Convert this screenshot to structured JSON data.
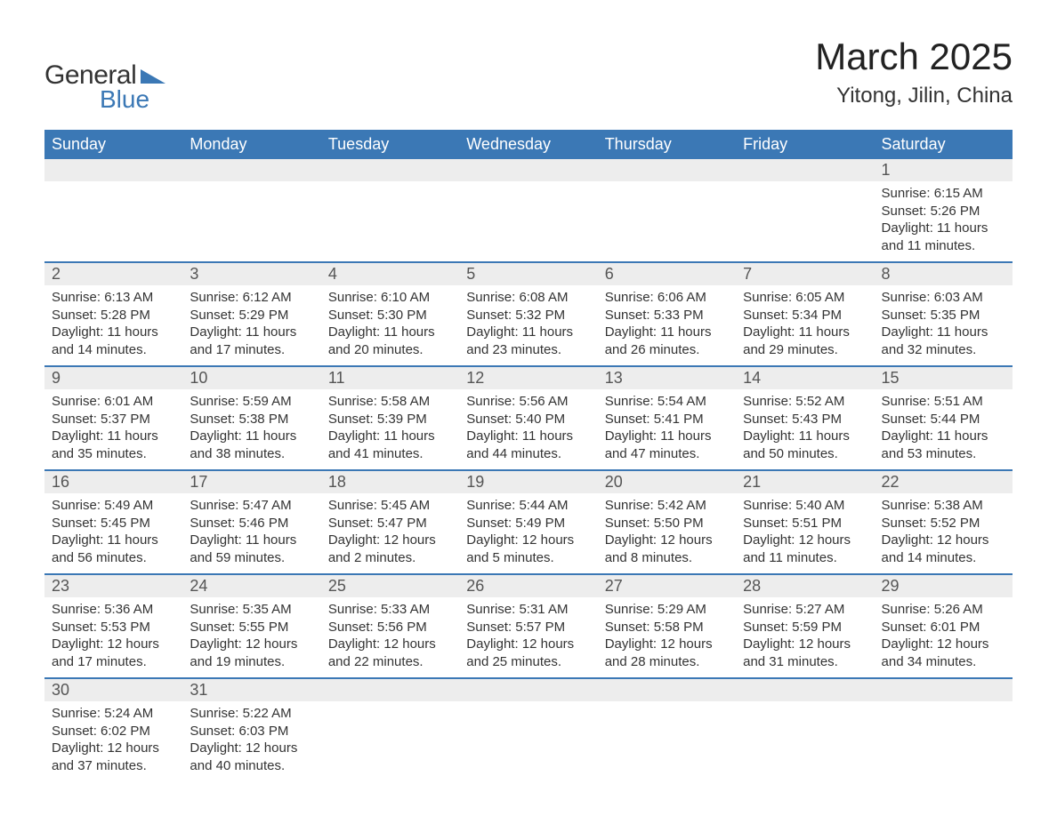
{
  "brand": {
    "word1": "General",
    "word2": "Blue",
    "accent_color": "#3b78b5"
  },
  "title": "March 2025",
  "location": "Yitong, Jilin, China",
  "colors": {
    "header_bg": "#3b78b5",
    "header_text": "#ffffff",
    "daynum_bg": "#ededed",
    "text": "#333333",
    "border": "#3b78b5"
  },
  "fonts": {
    "title_size": 42,
    "location_size": 24,
    "header_size": 18,
    "daynum_size": 18,
    "detail_size": 15
  },
  "weekdays": [
    "Sunday",
    "Monday",
    "Tuesday",
    "Wednesday",
    "Thursday",
    "Friday",
    "Saturday"
  ],
  "weeks": [
    {
      "nums": [
        "",
        "",
        "",
        "",
        "",
        "",
        "1"
      ],
      "cells": [
        null,
        null,
        null,
        null,
        null,
        null,
        {
          "sunrise": "Sunrise: 6:15 AM",
          "sunset": "Sunset: 5:26 PM",
          "day1": "Daylight: 11 hours",
          "day2": "and 11 minutes."
        }
      ]
    },
    {
      "nums": [
        "2",
        "3",
        "4",
        "5",
        "6",
        "7",
        "8"
      ],
      "cells": [
        {
          "sunrise": "Sunrise: 6:13 AM",
          "sunset": "Sunset: 5:28 PM",
          "day1": "Daylight: 11 hours",
          "day2": "and 14 minutes."
        },
        {
          "sunrise": "Sunrise: 6:12 AM",
          "sunset": "Sunset: 5:29 PM",
          "day1": "Daylight: 11 hours",
          "day2": "and 17 minutes."
        },
        {
          "sunrise": "Sunrise: 6:10 AM",
          "sunset": "Sunset: 5:30 PM",
          "day1": "Daylight: 11 hours",
          "day2": "and 20 minutes."
        },
        {
          "sunrise": "Sunrise: 6:08 AM",
          "sunset": "Sunset: 5:32 PM",
          "day1": "Daylight: 11 hours",
          "day2": "and 23 minutes."
        },
        {
          "sunrise": "Sunrise: 6:06 AM",
          "sunset": "Sunset: 5:33 PM",
          "day1": "Daylight: 11 hours",
          "day2": "and 26 minutes."
        },
        {
          "sunrise": "Sunrise: 6:05 AM",
          "sunset": "Sunset: 5:34 PM",
          "day1": "Daylight: 11 hours",
          "day2": "and 29 minutes."
        },
        {
          "sunrise": "Sunrise: 6:03 AM",
          "sunset": "Sunset: 5:35 PM",
          "day1": "Daylight: 11 hours",
          "day2": "and 32 minutes."
        }
      ]
    },
    {
      "nums": [
        "9",
        "10",
        "11",
        "12",
        "13",
        "14",
        "15"
      ],
      "cells": [
        {
          "sunrise": "Sunrise: 6:01 AM",
          "sunset": "Sunset: 5:37 PM",
          "day1": "Daylight: 11 hours",
          "day2": "and 35 minutes."
        },
        {
          "sunrise": "Sunrise: 5:59 AM",
          "sunset": "Sunset: 5:38 PM",
          "day1": "Daylight: 11 hours",
          "day2": "and 38 minutes."
        },
        {
          "sunrise": "Sunrise: 5:58 AM",
          "sunset": "Sunset: 5:39 PM",
          "day1": "Daylight: 11 hours",
          "day2": "and 41 minutes."
        },
        {
          "sunrise": "Sunrise: 5:56 AM",
          "sunset": "Sunset: 5:40 PM",
          "day1": "Daylight: 11 hours",
          "day2": "and 44 minutes."
        },
        {
          "sunrise": "Sunrise: 5:54 AM",
          "sunset": "Sunset: 5:41 PM",
          "day1": "Daylight: 11 hours",
          "day2": "and 47 minutes."
        },
        {
          "sunrise": "Sunrise: 5:52 AM",
          "sunset": "Sunset: 5:43 PM",
          "day1": "Daylight: 11 hours",
          "day2": "and 50 minutes."
        },
        {
          "sunrise": "Sunrise: 5:51 AM",
          "sunset": "Sunset: 5:44 PM",
          "day1": "Daylight: 11 hours",
          "day2": "and 53 minutes."
        }
      ]
    },
    {
      "nums": [
        "16",
        "17",
        "18",
        "19",
        "20",
        "21",
        "22"
      ],
      "cells": [
        {
          "sunrise": "Sunrise: 5:49 AM",
          "sunset": "Sunset: 5:45 PM",
          "day1": "Daylight: 11 hours",
          "day2": "and 56 minutes."
        },
        {
          "sunrise": "Sunrise: 5:47 AM",
          "sunset": "Sunset: 5:46 PM",
          "day1": "Daylight: 11 hours",
          "day2": "and 59 minutes."
        },
        {
          "sunrise": "Sunrise: 5:45 AM",
          "sunset": "Sunset: 5:47 PM",
          "day1": "Daylight: 12 hours",
          "day2": "and 2 minutes."
        },
        {
          "sunrise": "Sunrise: 5:44 AM",
          "sunset": "Sunset: 5:49 PM",
          "day1": "Daylight: 12 hours",
          "day2": "and 5 minutes."
        },
        {
          "sunrise": "Sunrise: 5:42 AM",
          "sunset": "Sunset: 5:50 PM",
          "day1": "Daylight: 12 hours",
          "day2": "and 8 minutes."
        },
        {
          "sunrise": "Sunrise: 5:40 AM",
          "sunset": "Sunset: 5:51 PM",
          "day1": "Daylight: 12 hours",
          "day2": "and 11 minutes."
        },
        {
          "sunrise": "Sunrise: 5:38 AM",
          "sunset": "Sunset: 5:52 PM",
          "day1": "Daylight: 12 hours",
          "day2": "and 14 minutes."
        }
      ]
    },
    {
      "nums": [
        "23",
        "24",
        "25",
        "26",
        "27",
        "28",
        "29"
      ],
      "cells": [
        {
          "sunrise": "Sunrise: 5:36 AM",
          "sunset": "Sunset: 5:53 PM",
          "day1": "Daylight: 12 hours",
          "day2": "and 17 minutes."
        },
        {
          "sunrise": "Sunrise: 5:35 AM",
          "sunset": "Sunset: 5:55 PM",
          "day1": "Daylight: 12 hours",
          "day2": "and 19 minutes."
        },
        {
          "sunrise": "Sunrise: 5:33 AM",
          "sunset": "Sunset: 5:56 PM",
          "day1": "Daylight: 12 hours",
          "day2": "and 22 minutes."
        },
        {
          "sunrise": "Sunrise: 5:31 AM",
          "sunset": "Sunset: 5:57 PM",
          "day1": "Daylight: 12 hours",
          "day2": "and 25 minutes."
        },
        {
          "sunrise": "Sunrise: 5:29 AM",
          "sunset": "Sunset: 5:58 PM",
          "day1": "Daylight: 12 hours",
          "day2": "and 28 minutes."
        },
        {
          "sunrise": "Sunrise: 5:27 AM",
          "sunset": "Sunset: 5:59 PM",
          "day1": "Daylight: 12 hours",
          "day2": "and 31 minutes."
        },
        {
          "sunrise": "Sunrise: 5:26 AM",
          "sunset": "Sunset: 6:01 PM",
          "day1": "Daylight: 12 hours",
          "day2": "and 34 minutes."
        }
      ]
    },
    {
      "nums": [
        "30",
        "31",
        "",
        "",
        "",
        "",
        ""
      ],
      "cells": [
        {
          "sunrise": "Sunrise: 5:24 AM",
          "sunset": "Sunset: 6:02 PM",
          "day1": "Daylight: 12 hours",
          "day2": "and 37 minutes."
        },
        {
          "sunrise": "Sunrise: 5:22 AM",
          "sunset": "Sunset: 6:03 PM",
          "day1": "Daylight: 12 hours",
          "day2": "and 40 minutes."
        },
        null,
        null,
        null,
        null,
        null
      ]
    }
  ]
}
